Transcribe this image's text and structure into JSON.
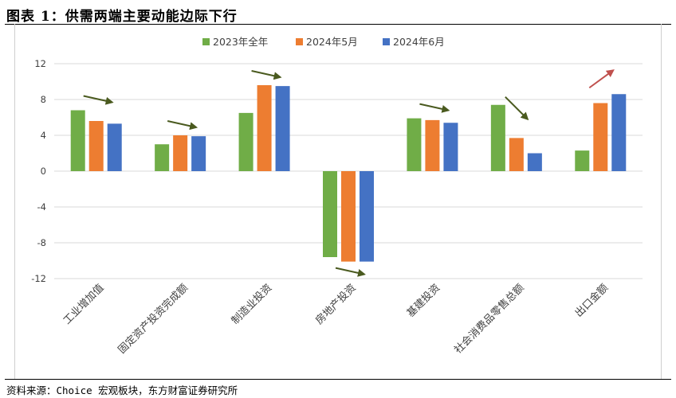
{
  "figure": {
    "title": "图表 1：供需两端主要动能边际下行",
    "source": "资料来源：Choice 宏观板块，东方财富证券研究所"
  },
  "chart_data": {
    "type": "bar",
    "categories": [
      "工业增加值",
      "固定资产投资完成额",
      "制造业投资",
      "房地产投资",
      "基建投资",
      "社会消费品零售总额",
      "出口金额"
    ],
    "series": [
      {
        "name": "2023年全年",
        "color": "#70ad47",
        "values": [
          6.8,
          3.0,
          6.5,
          -9.6,
          5.9,
          7.4,
          2.3
        ]
      },
      {
        "name": "2024年5月",
        "color": "#ed7d31",
        "values": [
          5.6,
          4.0,
          9.6,
          -10.1,
          5.7,
          3.7,
          7.6
        ]
      },
      {
        "name": "2024年6月",
        "color": "#4472c4",
        "values": [
          5.3,
          3.9,
          9.5,
          -10.1,
          5.4,
          2.0,
          8.6
        ]
      }
    ],
    "ylim": [
      -12,
      12
    ],
    "yticks": [
      -12,
      -8,
      -4,
      0,
      4,
      8,
      12
    ],
    "grid": true,
    "legend": "top-center",
    "annotations": [
      {
        "category": "工业增加值",
        "direction": "down",
        "color": "#4a5a1f"
      },
      {
        "category": "固定资产投资完成额",
        "direction": "down",
        "color": "#4a5a1f"
      },
      {
        "category": "制造业投资",
        "direction": "down",
        "color": "#4a5a1f"
      },
      {
        "category": "房地产投资",
        "direction": "down",
        "color": "#4a5a1f"
      },
      {
        "category": "基建投资",
        "direction": "down",
        "color": "#4a5a1f"
      },
      {
        "category": "社会消费品零售总额",
        "direction": "down",
        "color": "#4a5a1f"
      },
      {
        "category": "出口金额",
        "direction": "up",
        "color": "#c0504d"
      }
    ]
  }
}
